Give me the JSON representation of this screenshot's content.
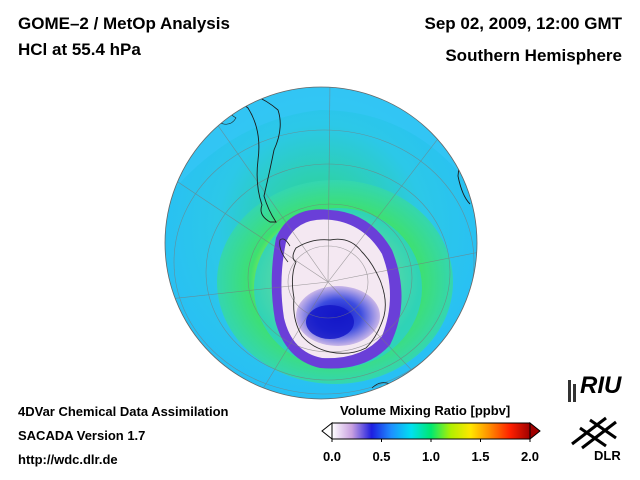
{
  "header": {
    "title_line1": "GOME–2 / MetOp Analysis",
    "title_line2": "HCl at 55.4 hPa",
    "date": "Sep 02, 2009, 12:00 GMT",
    "region": "Southern Hemisphere"
  },
  "footer": {
    "line1": "4DVar Chemical Data Assimilation",
    "line2": "SACADA Version 1.7",
    "url": "http://wdc.dlr.de"
  },
  "colorbar": {
    "title": "Volume Mixing Ratio [ppbv]",
    "ticks": [
      "0.0",
      "0.5",
      "1.0",
      "1.5",
      "2.0"
    ],
    "tick_values": [
      0.0,
      0.5,
      1.0,
      1.5,
      2.0
    ],
    "range": [
      0.0,
      2.0
    ],
    "colors": [
      "#ffffff",
      "#c8a0e0",
      "#1e1ee0",
      "#1e90ff",
      "#00e0f0",
      "#00e870",
      "#b0f000",
      "#ffe600",
      "#ff8800",
      "#ff2000",
      "#a00000"
    ]
  },
  "map": {
    "projection": "orthographic-south-polar",
    "field_colors": {
      "outer": "#2ec2f8",
      "ring": "#3ad460",
      "inner": "#f6edf5",
      "low": "#1a28d8"
    }
  },
  "logos": {
    "riu": "RIU",
    "dlr": "DLR"
  }
}
